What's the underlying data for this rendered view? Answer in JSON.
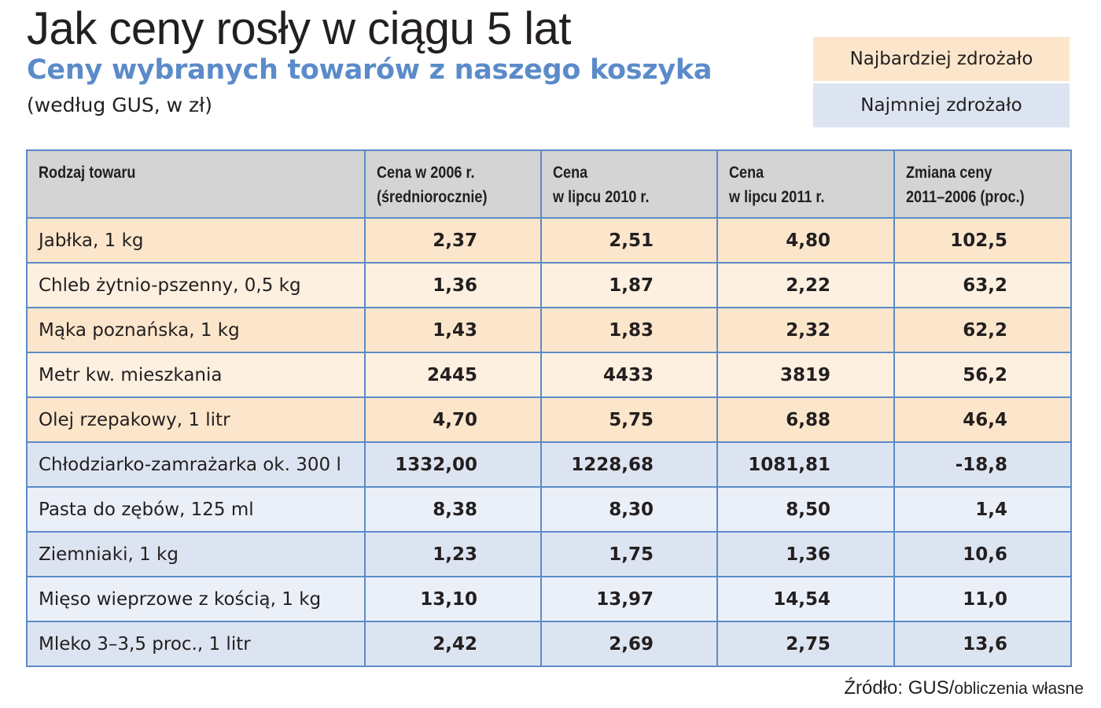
{
  "title": "Jak ceny rosły w ciągu 5 lat",
  "subtitle": "Ceny wybranych towarów z naszego koszyka",
  "source_note": "(według GUS, w zł)",
  "legend": {
    "most": {
      "label": "Najbardziej zdrożało",
      "color": "#fce6cb"
    },
    "least": {
      "label": "Najmniej zdrożało",
      "color": "#dde4f1"
    }
  },
  "colors": {
    "border": "#5b8bc9",
    "header_bg": "#d4d4d4",
    "subtitle": "#5b8bc9"
  },
  "chart_data": {
    "type": "table",
    "columns": [
      "Rodzaj towaru",
      "Cena w 2006 r.\n(średniorocznie)",
      "Cena\nw lipcu 2010 r.",
      "Cena\nw lipcu 2011 r.",
      "Zmiana ceny\n2011–2006 (proc.)"
    ],
    "rows": [
      {
        "group": "most",
        "cells": [
          "Jabłka, 1 kg",
          "2,37",
          "2,51",
          "4,80",
          "102,5"
        ]
      },
      {
        "group": "most",
        "cells": [
          "Chleb żytnio-pszenny, 0,5 kg",
          "1,36",
          "1,87",
          "2,22",
          "63,2"
        ]
      },
      {
        "group": "most",
        "cells": [
          "Mąka poznańska, 1 kg",
          "1,43",
          "1,83",
          "2,32",
          "62,2"
        ]
      },
      {
        "group": "most",
        "cells": [
          "Metr kw. mieszkania",
          "2445",
          "4433",
          "3819",
          "56,2"
        ]
      },
      {
        "group": "most",
        "cells": [
          "Olej rzepakowy, 1 litr",
          "4,70",
          "5,75",
          "6,88",
          "46,4"
        ]
      },
      {
        "group": "least",
        "cells": [
          "Chłodziarko-zamrażarka ok. 300 l",
          "1332,00",
          "1228,68",
          "1081,81",
          "-18,8"
        ]
      },
      {
        "group": "least",
        "cells": [
          "Pasta do zębów, 125 ml",
          "8,38",
          "8,30",
          "8,50",
          "1,4"
        ]
      },
      {
        "group": "least",
        "cells": [
          "Ziemniaki, 1 kg",
          "1,23",
          "1,75",
          "1,36",
          "10,6"
        ]
      },
      {
        "group": "least",
        "cells": [
          "Mięso wieprzowe z kością, 1 kg",
          "13,10",
          "13,97",
          "14,54",
          "11,0"
        ]
      },
      {
        "group": "least",
        "cells": [
          "Mleko 3–3,5 proc., 1 litr",
          "2,42",
          "2,69",
          "2,75",
          "13,6"
        ]
      }
    ]
  },
  "footer": {
    "source_label": "Źródło: GUS/",
    "source_rest": "obliczenia własne"
  }
}
